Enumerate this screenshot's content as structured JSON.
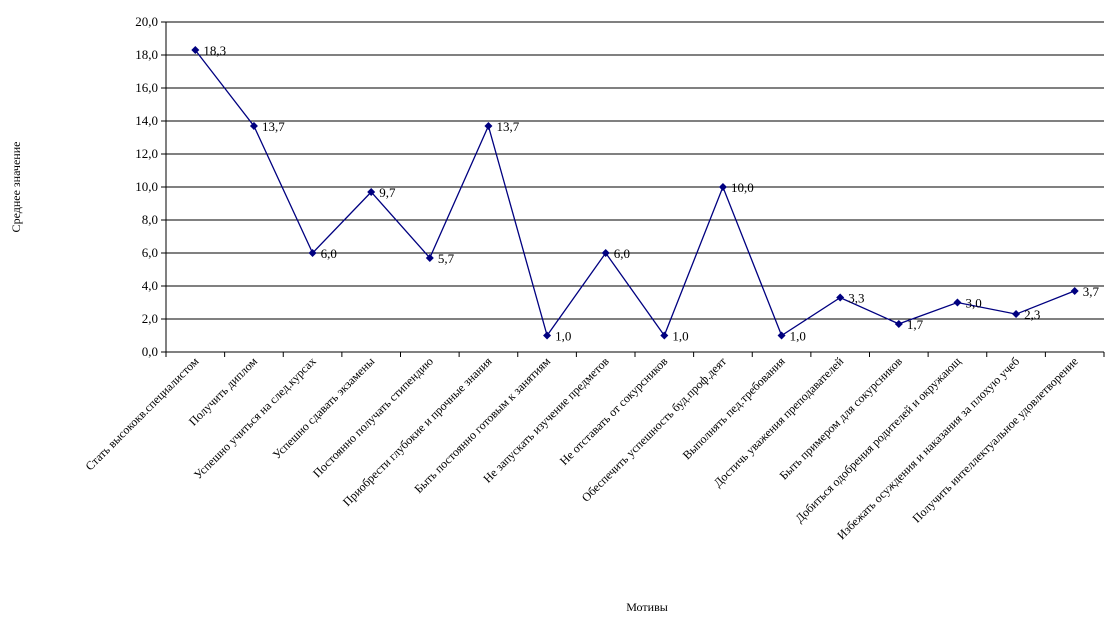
{
  "chart_data": {
    "type": "line",
    "title": "",
    "xlabel": "Мотивы",
    "ylabel": "Среднее значение",
    "ylim": [
      0,
      20
    ],
    "ytick_step": 2,
    "ytick_labels": [
      "0,0",
      "2,0",
      "4,0",
      "6,0",
      "8,0",
      "10,0",
      "12,0",
      "14,0",
      "16,0",
      "18,0",
      "20,0"
    ],
    "grid": true,
    "legend": "none",
    "categories": [
      "Стать высококв.специалистом",
      "Получить диплом",
      "Успешно учиться на след.курсах",
      "Успешно сдавать экзамены",
      "Постоянно получать стипендию",
      "Приобрести глубокие и прочные знания",
      "Быть постоянно готовым к занятиям",
      "Не запускать изучение предметов",
      "Не отставать от сокурсников",
      "Обеспечить успешность буд.проф.деят",
      "Выполнять пед.требования",
      "Достичь уважения преподавателей",
      "Быть примером для сокурсников",
      "Добиться одобрения родителей и окружающ",
      "Избежать осуждения и наказания за плохую учеб",
      "Получить интеллектуальное удовлетворение"
    ],
    "series": [
      {
        "values": [
          18.3,
          13.7,
          6.0,
          9.7,
          5.7,
          13.7,
          1.0,
          6.0,
          1.0,
          10.0,
          1.0,
          3.3,
          1.7,
          3.0,
          2.3,
          3.7
        ],
        "data_labels": [
          "18,3",
          "13,7",
          "6,0",
          "9,7",
          "5,7",
          "13,7",
          "1,0",
          "6,0",
          "1,0",
          "10,0",
          "1,0",
          "3,3",
          "1,7",
          "3,0",
          "2,3",
          "3,7"
        ],
        "color": "#000080",
        "marker": "diamond"
      }
    ]
  }
}
